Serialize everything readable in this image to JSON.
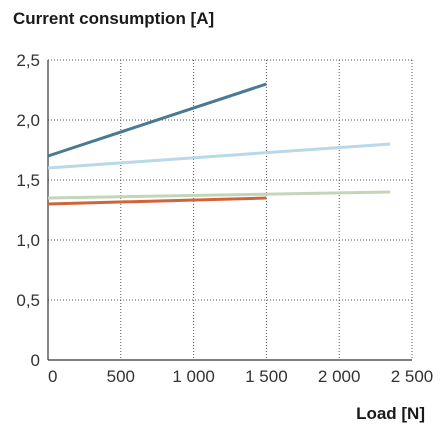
{
  "chart_data": {
    "type": "line",
    "title": "Current consumption [A]",
    "xlabel": "Load [N]",
    "ylabel": "",
    "xlim": [
      0,
      2500
    ],
    "ylim": [
      0,
      2.5
    ],
    "grid": true,
    "x_ticks": [
      "0",
      "500",
      "1 000",
      "1 500",
      "2 000",
      "2 500"
    ],
    "y_ticks": [
      "0",
      "0,5",
      "1,0",
      "1,5",
      "2,0",
      "2,5"
    ],
    "series": [
      {
        "color": "#4a7a91",
        "x": [
          0,
          1500
        ],
        "y": [
          1.7,
          2.3
        ]
      },
      {
        "color": "#b9d8e8",
        "x": [
          0,
          2350
        ],
        "y": [
          1.6,
          1.8
        ]
      },
      {
        "color": "#c3d6b9",
        "x": [
          0,
          2350
        ],
        "y": [
          1.35,
          1.4
        ]
      },
      {
        "color": "#d2643c",
        "x": [
          0,
          1500
        ],
        "y": [
          1.3,
          1.35
        ]
      }
    ]
  }
}
